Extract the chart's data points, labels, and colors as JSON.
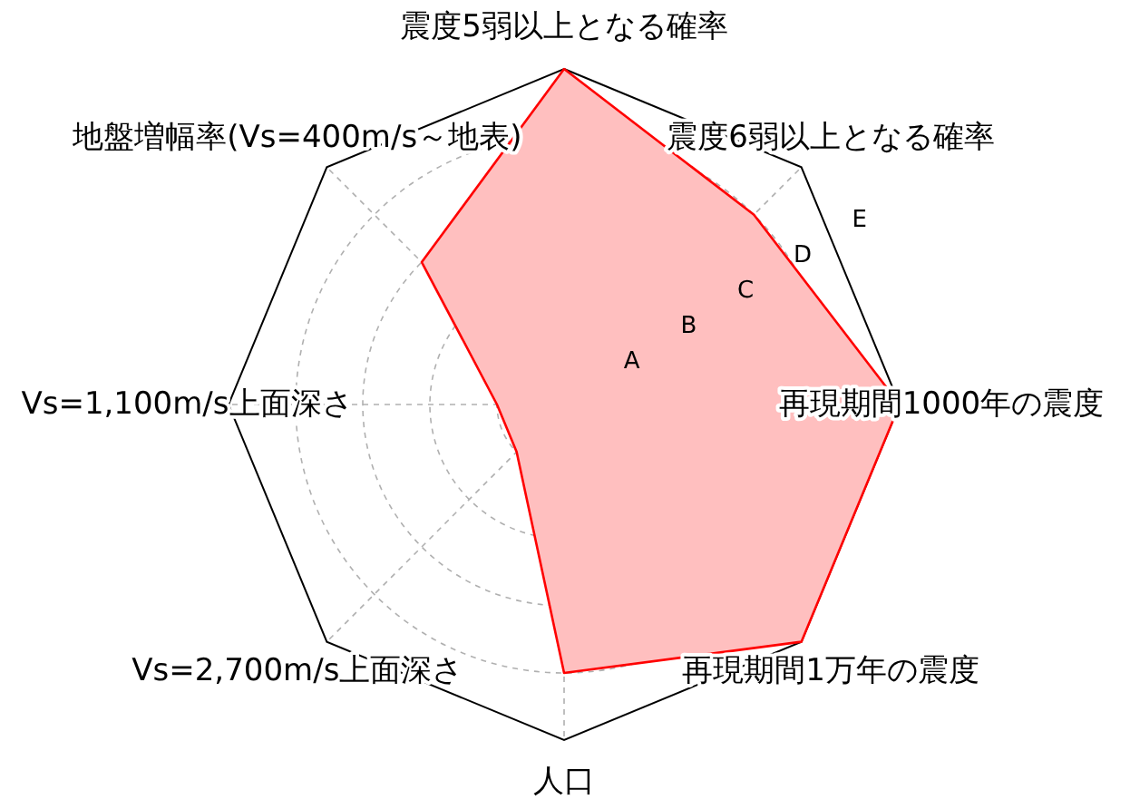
{
  "chart_data": {
    "type": "radar",
    "categories": [
      "震度5弱以上となる確率",
      "震度6弱以上となる確率",
      "再現期間1000年の震度",
      "再現期間1万年の震度",
      "人口",
      "Vs=2,700m/s上面深さ",
      "Vs=1,100m/s上面深さ",
      "地盤増幅率(Vs=400m/s～地表)"
    ],
    "series": [
      {
        "color": "#ff0000",
        "values": [
          5,
          4,
          5,
          5,
          4,
          1,
          1,
          3
        ]
      }
    ],
    "ylim": [
      0,
      5
    ],
    "yticks": [
      {
        "value": 1,
        "label": "A"
      },
      {
        "value": 2,
        "label": "B"
      },
      {
        "value": 3,
        "label": "C"
      },
      {
        "value": 4,
        "label": "D"
      },
      {
        "value": 5,
        "label": "E"
      }
    ],
    "grid": true
  }
}
